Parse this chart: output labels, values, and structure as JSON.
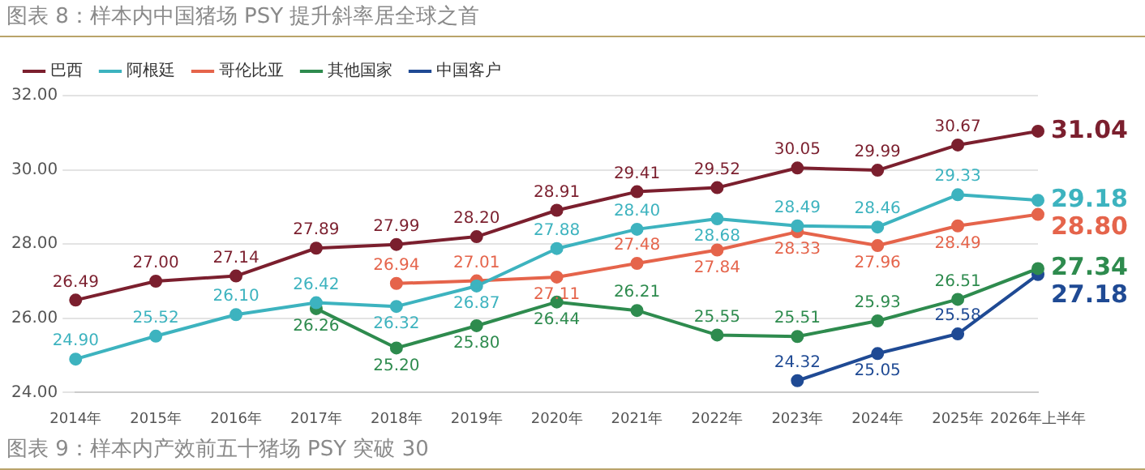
{
  "chart_data": {
    "type": "line",
    "title": "图表 8：样本内中国猪场 PSY 提升斜率居全球之首",
    "annotations": [
      "图表 9：样本内产效前五十猪场 PSY 突破 30"
    ],
    "categories": [
      "2014年",
      "2015年",
      "2016年",
      "2017年",
      "2018年",
      "2019年",
      "2020年",
      "2021年",
      "2022年",
      "2023年",
      "2024年",
      "2025年",
      "2026年上半年"
    ],
    "series": [
      {
        "name": "巴西",
        "color": "#7b1f2e",
        "values": [
          26.49,
          27.0,
          27.14,
          27.89,
          27.99,
          28.2,
          28.91,
          29.41,
          29.52,
          30.05,
          29.99,
          30.67,
          31.04
        ],
        "value_labels": [
          "26.49",
          "27.00",
          "27.14",
          "27.89",
          "27.99",
          "28.20",
          "28.91",
          "29.41",
          "29.52",
          "30.05",
          "29.99",
          "30.67",
          "31.04"
        ]
      },
      {
        "name": "阿根廷",
        "color": "#3db3bf",
        "values": [
          24.9,
          25.52,
          26.1,
          26.42,
          26.32,
          26.87,
          27.88,
          28.4,
          28.68,
          28.49,
          28.46,
          29.33,
          29.18
        ],
        "value_labels": [
          "24.90",
          "25.52",
          "26.10",
          "26.42",
          "26.32",
          "26.87",
          "27.88",
          "28.40",
          "28.68",
          "28.49",
          "28.46",
          "29.33",
          "29.18"
        ]
      },
      {
        "name": "哥伦比亚",
        "color": "#e5644b",
        "values": [
          null,
          null,
          null,
          null,
          26.94,
          27.01,
          27.11,
          27.48,
          27.84,
          28.33,
          27.96,
          28.49,
          28.8
        ],
        "value_labels": [
          null,
          null,
          null,
          null,
          "26.94",
          "27.01",
          "27.11",
          "27.48",
          "27.84",
          "28.33",
          "27.96",
          "28.49",
          "28.80"
        ]
      },
      {
        "name": "其他国家",
        "color": "#2e8b4e",
        "values": [
          null,
          null,
          null,
          26.26,
          25.2,
          25.8,
          26.44,
          26.21,
          25.55,
          25.51,
          25.93,
          26.51,
          27.34
        ],
        "value_labels": [
          null,
          null,
          null,
          "26.26",
          "25.20",
          "25.80",
          "26.44",
          "26.21",
          "25.55",
          "25.51",
          "25.93",
          "26.51",
          "27.34"
        ]
      },
      {
        "name": "中国客户",
        "color": "#1f4a94",
        "values": [
          null,
          null,
          null,
          null,
          null,
          null,
          null,
          null,
          null,
          24.32,
          25.05,
          25.58,
          27.18
        ],
        "value_labels": [
          null,
          null,
          null,
          null,
          null,
          null,
          null,
          null,
          null,
          "24.32",
          "25.05",
          "25.58",
          "27.18"
        ]
      }
    ],
    "ylim": [
      24,
      32
    ],
    "yticks": [
      {
        "value": 24,
        "label": "24.00"
      },
      {
        "value": 26,
        "label": "26.00"
      },
      {
        "value": 28,
        "label": "28.00"
      },
      {
        "value": 30,
        "label": "30.00"
      },
      {
        "value": 32,
        "label": "32.00"
      }
    ],
    "grid": "y",
    "legend": "top left",
    "marker": "circle",
    "line_style": "solid"
  }
}
